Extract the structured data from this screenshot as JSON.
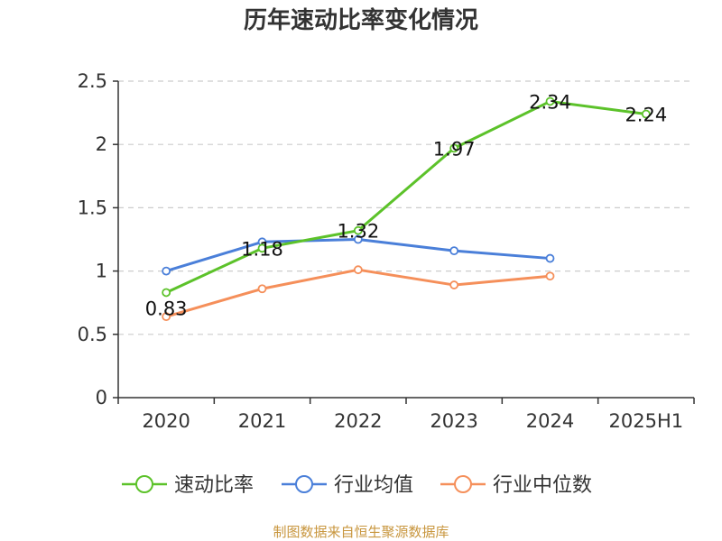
{
  "chart_data": {
    "type": "line",
    "title": "历年速动比率变化情况",
    "categories": [
      "2020",
      "2021",
      "2022",
      "2023",
      "2024",
      "2025H1"
    ],
    "ylim": [
      0,
      2.5
    ],
    "y_ticks": [
      "0",
      "0.5",
      "1",
      "1.5",
      "2",
      "2.5"
    ],
    "grid": true,
    "legend_position": "bottom",
    "series": [
      {
        "name": "速动比率",
        "color": "#5cc22a",
        "values": [
          0.83,
          1.18,
          1.32,
          1.97,
          2.34,
          2.24
        ],
        "labels": [
          "0.83",
          "1.18",
          "1.32",
          "1.97",
          "2.34",
          "2.24"
        ]
      },
      {
        "name": "行业均值",
        "color": "#4a7fd9",
        "values": [
          1.0,
          1.23,
          1.25,
          1.16,
          1.1,
          null
        ]
      },
      {
        "name": "行业中位数",
        "color": "#f58f5a",
        "values": [
          0.64,
          0.86,
          1.01,
          0.89,
          0.96,
          null
        ]
      }
    ]
  },
  "source": "制图数据来自恒生聚源数据库"
}
